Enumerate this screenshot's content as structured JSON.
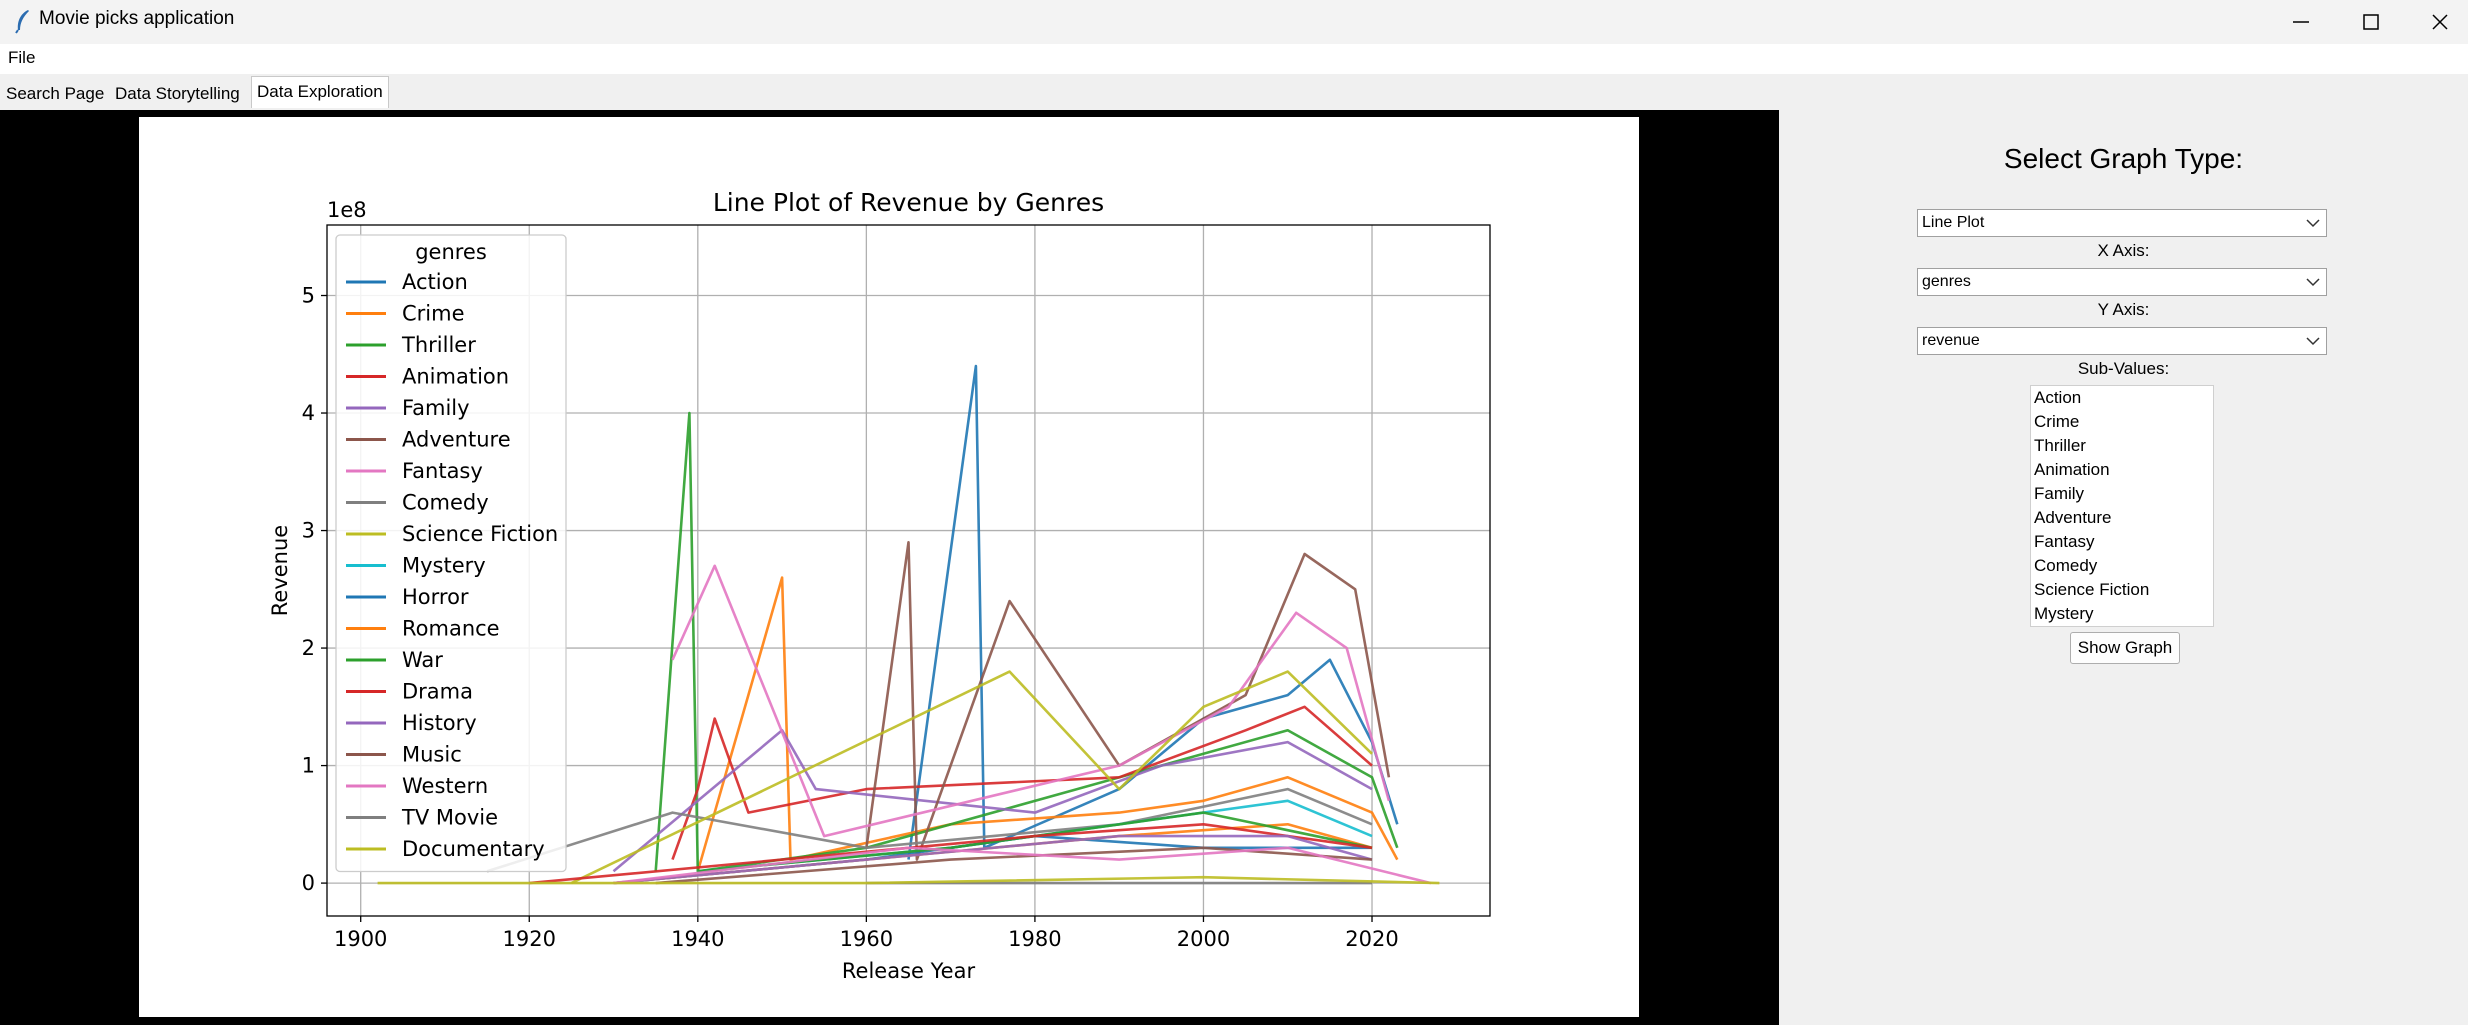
{
  "window": {
    "title": "Movie picks application"
  },
  "menu": {
    "file": "File"
  },
  "tabs": [
    {
      "label": "Search Page"
    },
    {
      "label": "Data Storytelling"
    },
    {
      "label": "Data Exploration"
    }
  ],
  "sidebar": {
    "title": "Select Graph Type:",
    "graph_type": "Line Plot",
    "x_label": "X Axis:",
    "x_value": "genres",
    "y_label": "Y Axis:",
    "y_value": "revenue",
    "sub_label": "Sub-Values:",
    "sub_values": [
      "Action",
      "Crime",
      "Thriller",
      "Animation",
      "Family",
      "Adventure",
      "Fantasy",
      "Comedy",
      "Science Fiction",
      "Mystery"
    ],
    "button": "Show Graph"
  },
  "chart_data": {
    "type": "line",
    "title": "Line Plot of Revenue by Genres",
    "xlabel": "Release Year",
    "ylabel": "Revenue",
    "offset_label": "1e8",
    "xlim": [
      1896,
      2034
    ],
    "ylim": [
      -0.28,
      5.6
    ],
    "xticks": [
      1900,
      1920,
      1940,
      1960,
      1980,
      2000,
      2020
    ],
    "yticks": [
      0,
      1,
      2,
      3,
      4,
      5
    ],
    "grid": true,
    "legend_title": "genres",
    "legend_placement": "upper-left",
    "series": [
      {
        "name": "Action",
        "color": "#1f77b4",
        "values": [
          [
            1965,
            0.2
          ],
          [
            1973,
            4.4
          ],
          [
            1974,
            0.3
          ],
          [
            1990,
            0.8
          ],
          [
            2000,
            1.4
          ],
          [
            2010,
            1.6
          ],
          [
            2015,
            1.9
          ],
          [
            2020,
            1.2
          ],
          [
            2023,
            0.5
          ]
        ]
      },
      {
        "name": "Crime",
        "color": "#ff7f0e",
        "values": [
          [
            1940,
            0.1
          ],
          [
            1950,
            2.6
          ],
          [
            1951,
            0.2
          ],
          [
            1970,
            0.5
          ],
          [
            1990,
            0.6
          ],
          [
            2000,
            0.7
          ],
          [
            2010,
            0.9
          ],
          [
            2020,
            0.6
          ],
          [
            2023,
            0.2
          ]
        ]
      },
      {
        "name": "Thriller",
        "color": "#2ca02c",
        "values": [
          [
            1935,
            0.1
          ],
          [
            1939,
            4.0
          ],
          [
            1940,
            0.1
          ],
          [
            1960,
            0.3
          ],
          [
            1985,
            0.8
          ],
          [
            2000,
            1.1
          ],
          [
            2010,
            1.3
          ],
          [
            2020,
            0.9
          ],
          [
            2023,
            0.3
          ]
        ]
      },
      {
        "name": "Animation",
        "color": "#d62728",
        "values": [
          [
            1937,
            0.2
          ],
          [
            1940,
            0.8
          ],
          [
            1942,
            1.4
          ],
          [
            1946,
            0.6
          ],
          [
            1960,
            0.8
          ],
          [
            1990,
            0.9
          ],
          [
            2005,
            1.3
          ],
          [
            2012,
            1.5
          ],
          [
            2020,
            1.0
          ]
        ]
      },
      {
        "name": "Family",
        "color": "#9467bd",
        "values": [
          [
            1930,
            0.1
          ],
          [
            1950,
            1.3
          ],
          [
            1954,
            0.8
          ],
          [
            1980,
            0.6
          ],
          [
            1995,
            1.0
          ],
          [
            2010,
            1.2
          ],
          [
            2020,
            0.8
          ]
        ]
      },
      {
        "name": "Adventure",
        "color": "#8c564b",
        "values": [
          [
            1960,
            0.3
          ],
          [
            1965,
            2.9
          ],
          [
            1966,
            0.2
          ],
          [
            1977,
            2.4
          ],
          [
            1990,
            1.0
          ],
          [
            2005,
            1.6
          ],
          [
            2012,
            2.8
          ],
          [
            2018,
            2.5
          ],
          [
            2022,
            0.9
          ]
        ]
      },
      {
        "name": "Fantasy",
        "color": "#e377c2",
        "values": [
          [
            1937,
            1.9
          ],
          [
            1942,
            2.7
          ],
          [
            1955,
            0.4
          ],
          [
            1990,
            1.0
          ],
          [
            2003,
            1.5
          ],
          [
            2011,
            2.3
          ],
          [
            2017,
            2.0
          ],
          [
            2022,
            0.7
          ]
        ]
      },
      {
        "name": "Comedy",
        "color": "#7f7f7f",
        "values": [
          [
            1915,
            0.1
          ],
          [
            1937,
            0.6
          ],
          [
            1960,
            0.3
          ],
          [
            1990,
            0.5
          ],
          [
            2010,
            0.8
          ],
          [
            2020,
            0.5
          ]
        ]
      },
      {
        "name": "Science Fiction",
        "color": "#bcbd22",
        "values": [
          [
            1925,
            0.0
          ],
          [
            1977,
            1.8
          ],
          [
            1990,
            0.8
          ],
          [
            2000,
            1.5
          ],
          [
            2010,
            1.8
          ],
          [
            2020,
            1.1
          ]
        ]
      },
      {
        "name": "Mystery",
        "color": "#17becf",
        "values": [
          [
            1940,
            0.1
          ],
          [
            1970,
            0.3
          ],
          [
            1990,
            0.5
          ],
          [
            2010,
            0.7
          ],
          [
            2020,
            0.4
          ]
        ]
      },
      {
        "name": "Horror",
        "color": "#1f77b4",
        "values": [
          [
            1930,
            0.0
          ],
          [
            1960,
            0.2
          ],
          [
            1980,
            0.4
          ],
          [
            2000,
            0.3
          ],
          [
            2020,
            0.3
          ]
        ]
      },
      {
        "name": "Romance",
        "color": "#ff7f0e",
        "values": [
          [
            1930,
            0.0
          ],
          [
            1960,
            0.2
          ],
          [
            1990,
            0.4
          ],
          [
            2010,
            0.5
          ],
          [
            2020,
            0.3
          ]
        ]
      },
      {
        "name": "War",
        "color": "#2ca02c",
        "values": [
          [
            1940,
            0.1
          ],
          [
            1970,
            0.3
          ],
          [
            2000,
            0.6
          ],
          [
            2020,
            0.3
          ]
        ]
      },
      {
        "name": "Drama",
        "color": "#d62728",
        "values": [
          [
            1920,
            0.0
          ],
          [
            1950,
            0.2
          ],
          [
            1980,
            0.4
          ],
          [
            2000,
            0.5
          ],
          [
            2020,
            0.3
          ]
        ]
      },
      {
        "name": "History",
        "color": "#9467bd",
        "values": [
          [
            1930,
            0.0
          ],
          [
            1960,
            0.2
          ],
          [
            1990,
            0.4
          ],
          [
            2010,
            0.4
          ],
          [
            2020,
            0.2
          ]
        ]
      },
      {
        "name": "Music",
        "color": "#8c564b",
        "values": [
          [
            1935,
            0.0
          ],
          [
            1970,
            0.2
          ],
          [
            2000,
            0.3
          ],
          [
            2020,
            0.2
          ]
        ]
      },
      {
        "name": "Western",
        "color": "#e377c2",
        "values": [
          [
            1930,
            0.0
          ],
          [
            1965,
            0.3
          ],
          [
            1990,
            0.2
          ],
          [
            2010,
            0.3
          ],
          [
            2027,
            0.0
          ]
        ]
      },
      {
        "name": "TV Movie",
        "color": "#7f7f7f",
        "values": [
          [
            1960,
            0.0
          ],
          [
            2000,
            0.0
          ],
          [
            2020,
            0.0
          ]
        ]
      },
      {
        "name": "Documentary",
        "color": "#bcbd22",
        "values": [
          [
            1902,
            0.0
          ],
          [
            1960,
            0.0
          ],
          [
            2000,
            0.05
          ],
          [
            2028,
            0.0
          ]
        ]
      }
    ]
  }
}
